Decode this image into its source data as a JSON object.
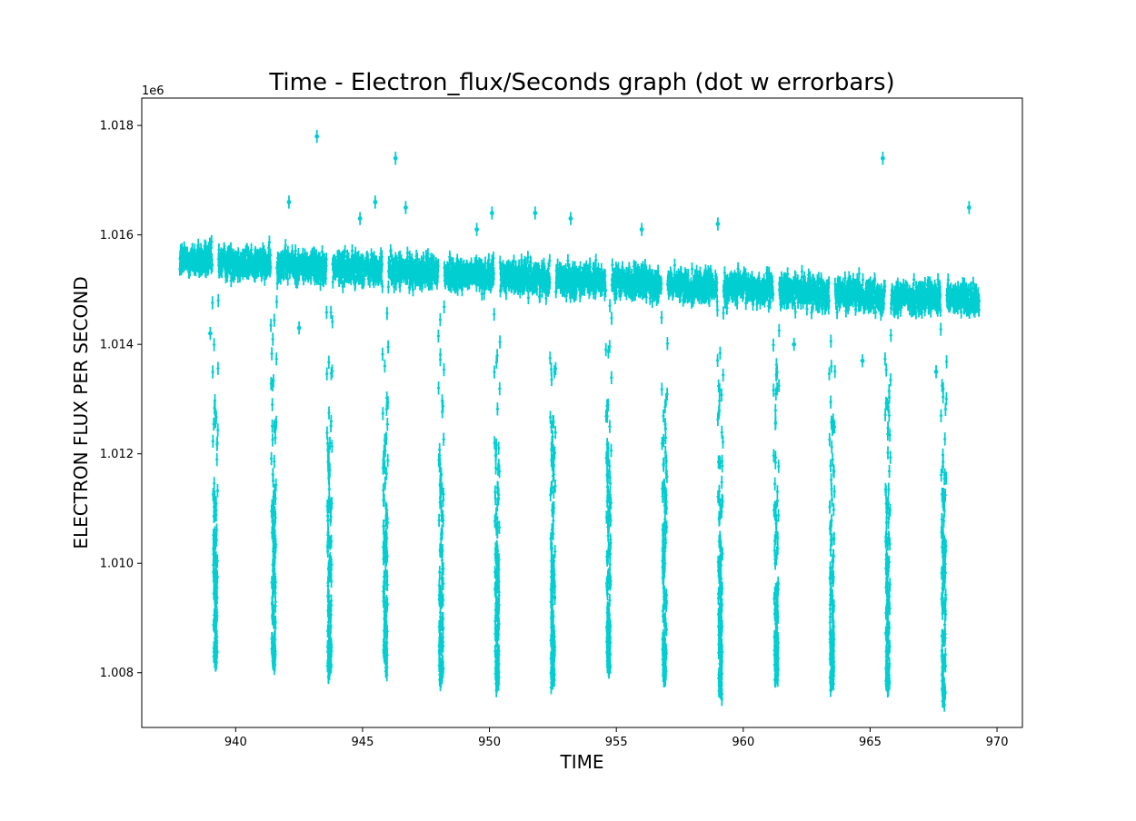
{
  "chart_data": {
    "type": "scatter",
    "title": "Time - Electron_flux/Seconds graph (dot w errorbars)",
    "xlabel": "TIME",
    "ylabel": "ELECTRON FLUX PER SECOND",
    "offset_label": "1e6",
    "xlim": [
      936.3,
      971.0
    ],
    "ylim": [
      1.007,
      1.0185
    ],
    "x_ticks": [
      940,
      945,
      950,
      955,
      960,
      965,
      970
    ],
    "y_ticks": [
      1.008,
      1.01,
      1.012,
      1.014,
      1.016,
      1.018
    ],
    "grid": false,
    "legend": "none",
    "color": "#00CED1",
    "series": [
      {
        "name": "",
        "data_range": {
          "x_start": 937.8,
          "x_end": 969.3
        },
        "baseline_trend": {
          "x": [
            937.8,
            969.3
          ],
          "y": [
            1.01555,
            1.0148
          ]
        },
        "baseline_scatter": 0.00025,
        "typical_y_error": 0.00012,
        "dips": [
          {
            "x": 939.2,
            "min_y": 1.0083
          },
          {
            "x": 941.5,
            "min_y": 1.0083
          },
          {
            "x": 943.7,
            "min_y": 1.0082
          },
          {
            "x": 945.9,
            "min_y": 1.0083
          },
          {
            "x": 948.1,
            "min_y": 1.008
          },
          {
            "x": 950.3,
            "min_y": 1.0079
          },
          {
            "x": 952.5,
            "min_y": 1.008
          },
          {
            "x": 954.7,
            "min_y": 1.0081
          },
          {
            "x": 956.9,
            "min_y": 1.008
          },
          {
            "x": 959.1,
            "min_y": 1.0078
          },
          {
            "x": 961.3,
            "min_y": 1.008
          },
          {
            "x": 963.5,
            "min_y": 1.0079
          },
          {
            "x": 965.7,
            "min_y": 1.0078
          },
          {
            "x": 967.9,
            "min_y": 1.0076
          }
        ],
        "outliers": [
          {
            "x": 943.2,
            "y": 1.0178
          },
          {
            "x": 946.3,
            "y": 1.0174
          },
          {
            "x": 965.5,
            "y": 1.0174
          },
          {
            "x": 942.1,
            "y": 1.0166
          },
          {
            "x": 945.5,
            "y": 1.0166
          },
          {
            "x": 946.7,
            "y": 1.0165
          },
          {
            "x": 944.9,
            "y": 1.0163
          },
          {
            "x": 950.1,
            "y": 1.0164
          },
          {
            "x": 951.8,
            "y": 1.0164
          },
          {
            "x": 953.2,
            "y": 1.0163
          },
          {
            "x": 959.0,
            "y": 1.0162
          },
          {
            "x": 968.9,
            "y": 1.0165
          },
          {
            "x": 949.5,
            "y": 1.0161
          },
          {
            "x": 956.0,
            "y": 1.0161
          },
          {
            "x": 939.0,
            "y": 1.0142
          },
          {
            "x": 942.5,
            "y": 1.0143
          },
          {
            "x": 962.0,
            "y": 1.014
          },
          {
            "x": 964.7,
            "y": 1.0137
          },
          {
            "x": 967.6,
            "y": 1.0135
          }
        ]
      }
    ]
  }
}
